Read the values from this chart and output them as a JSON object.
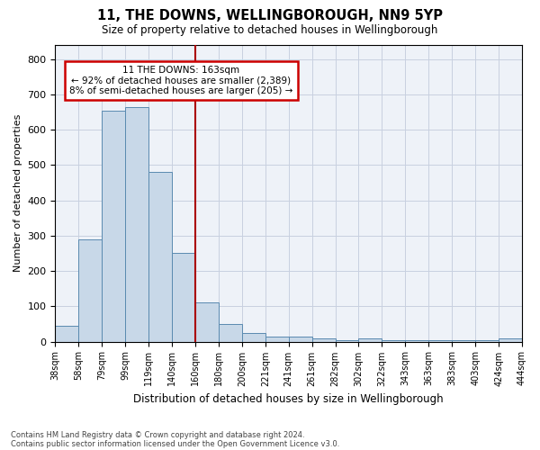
{
  "title1": "11, THE DOWNS, WELLINGBOROUGH, NN9 5YP",
  "title2": "Size of property relative to detached houses in Wellingborough",
  "xlabel": "Distribution of detached houses by size in Wellingborough",
  "ylabel": "Number of detached properties",
  "footnote1": "Contains HM Land Registry data © Crown copyright and database right 2024.",
  "footnote2": "Contains public sector information licensed under the Open Government Licence v3.0.",
  "bar_values": [
    45,
    290,
    655,
    665,
    480,
    250,
    110,
    50,
    25,
    15,
    15,
    8,
    5,
    8,
    5,
    5,
    5,
    5,
    3,
    8
  ],
  "bar_labels": [
    "38sqm",
    "58sqm",
    "79sqm",
    "99sqm",
    "119sqm",
    "140sqm",
    "160sqm",
    "180sqm",
    "200sqm",
    "221sqm",
    "241sqm",
    "261sqm",
    "282sqm",
    "302sqm",
    "322sqm",
    "343sqm",
    "363sqm",
    "383sqm",
    "403sqm",
    "424sqm",
    "444sqm"
  ],
  "bar_color": "#c8d8e8",
  "bar_edge_color": "#5a8ab0",
  "grid_color": "#c8d0e0",
  "background_color": "#eef2f8",
  "vline_color": "#aa0000",
  "annotation_text": "11 THE DOWNS: 163sqm\n← 92% of detached houses are smaller (2,389)\n8% of semi-detached houses are larger (205) →",
  "annotation_box_color": "#ffffff",
  "annotation_box_edge": "#cc0000",
  "ylim": [
    0,
    840
  ],
  "yticks": [
    0,
    100,
    200,
    300,
    400,
    500,
    600,
    700,
    800
  ],
  "vline_index": 6
}
